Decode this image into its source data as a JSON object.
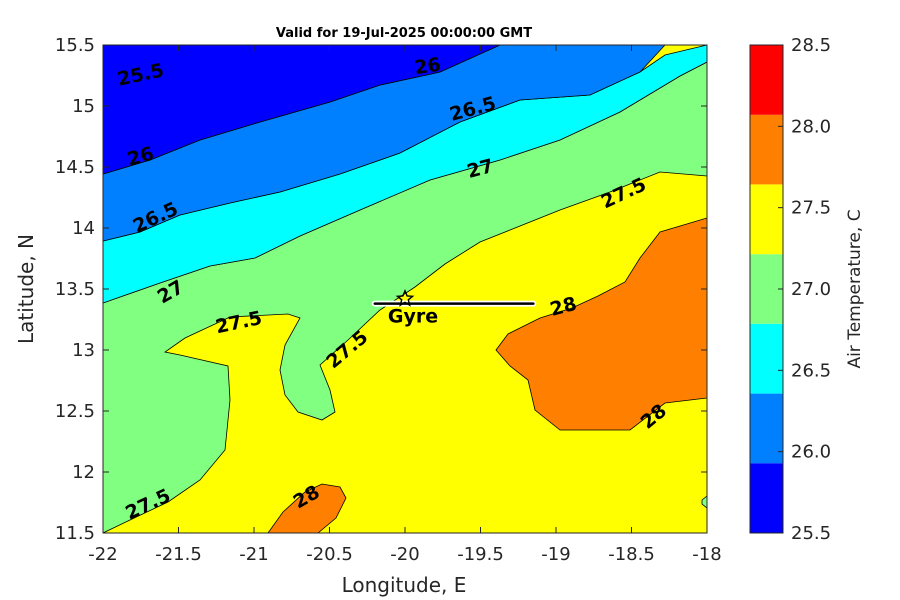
{
  "chart_data": {
    "type": "contour",
    "title": "Valid for 19-Jul-2025 00:00:00 GMT",
    "xlabel": "Longitude, E",
    "ylabel": "Latitude, N",
    "xlim": [
      -22,
      -18
    ],
    "ylim": [
      11.5,
      15.5
    ],
    "xticks": [
      -22,
      -21.5,
      -21,
      -20.5,
      -20,
      -19.5,
      -19,
      -18.5,
      -18
    ],
    "yticks": [
      11.5,
      12,
      12.5,
      13,
      13.5,
      14,
      14.5,
      15,
      15.5
    ],
    "colorbar": {
      "label": "Air Temperature, C",
      "ticks": [
        25.5,
        26,
        26.5,
        27,
        27.5,
        28,
        28.5
      ],
      "levels": [
        {
          "from": 25.5,
          "to": 25.929,
          "color": "#0000ff"
        },
        {
          "from": 25.929,
          "to": 26.357,
          "color": "#0080ff"
        },
        {
          "from": 26.357,
          "to": 26.786,
          "color": "#00ffff"
        },
        {
          "from": 26.786,
          "to": 27.214,
          "color": "#80ff80"
        },
        {
          "from": 27.214,
          "to": 27.643,
          "color": "#ffff00"
        },
        {
          "from": 27.643,
          "to": 28.071,
          "color": "#ff8000"
        },
        {
          "from": 28.071,
          "to": 28.5,
          "color": "#ff0000"
        }
      ]
    },
    "contour_labels": [
      {
        "text": "25.5",
        "lon": -21.75,
        "lat": 15.25,
        "angle": -12
      },
      {
        "text": "26",
        "lon": -19.85,
        "lat": 15.32,
        "angle": -8
      },
      {
        "text": "26.5",
        "lon": -19.55,
        "lat": 14.97,
        "angle": -15
      },
      {
        "text": "26",
        "lon": -21.75,
        "lat": 14.58,
        "angle": -15
      },
      {
        "text": "27",
        "lon": -19.5,
        "lat": 14.48,
        "angle": -15
      },
      {
        "text": "27.5",
        "lon": -18.55,
        "lat": 14.28,
        "angle": -25
      },
      {
        "text": "26.5",
        "lon": -21.65,
        "lat": 14.08,
        "angle": -25
      },
      {
        "text": "27",
        "lon": -21.55,
        "lat": 13.47,
        "angle": -30
      },
      {
        "text": "27.5",
        "lon": -21.1,
        "lat": 13.22,
        "angle": -12
      },
      {
        "text": "27.5",
        "lon": -20.38,
        "lat": 13.0,
        "angle": -40
      },
      {
        "text": "28",
        "lon": -18.95,
        "lat": 13.35,
        "angle": -15
      },
      {
        "text": "28",
        "lon": -18.35,
        "lat": 12.45,
        "angle": -40
      },
      {
        "text": "27.5",
        "lon": -21.7,
        "lat": 11.73,
        "angle": -25
      },
      {
        "text": "28",
        "lon": -20.65,
        "lat": 11.79,
        "angle": -30
      }
    ],
    "track": {
      "name": "Gyre",
      "start": [
        -20.2,
        13.38
      ],
      "end": [
        -19.15,
        13.38
      ],
      "marker": [
        -20.0,
        13.42
      ]
    },
    "grid": false,
    "legend": "colorbar-right"
  }
}
